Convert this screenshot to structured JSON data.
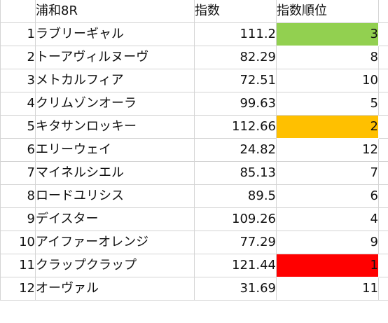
{
  "sheet": {
    "headers": {
      "race": "浦和8R",
      "index": "指数",
      "rank": "指数順位"
    },
    "rows": [
      {
        "no": "1",
        "name": "ラブリーギャル",
        "index": "111.2",
        "rank": "3",
        "highlight": "#92d050"
      },
      {
        "no": "2",
        "name": "トーアヴィルヌーヴ",
        "index": "82.29",
        "rank": "8",
        "highlight": ""
      },
      {
        "no": "3",
        "name": "メトカルフィア",
        "index": "72.51",
        "rank": "10",
        "highlight": ""
      },
      {
        "no": "4",
        "name": "クリムゾンオーラ",
        "index": "99.63",
        "rank": "5",
        "highlight": ""
      },
      {
        "no": "5",
        "name": "キタサンロッキー",
        "index": "112.66",
        "rank": "2",
        "highlight": "#ffc000"
      },
      {
        "no": "6",
        "name": "エリーウェイ",
        "index": "24.82",
        "rank": "12",
        "highlight": ""
      },
      {
        "no": "7",
        "name": "マイネルシエル",
        "index": "85.13",
        "rank": "7",
        "highlight": ""
      },
      {
        "no": "8",
        "name": "ロードユリシス",
        "index": "89.5",
        "rank": "6",
        "highlight": ""
      },
      {
        "no": "9",
        "name": "デイスター",
        "index": "109.26",
        "rank": "4",
        "highlight": ""
      },
      {
        "no": "10",
        "name": "アイファーオレンジ",
        "index": "77.29",
        "rank": "9",
        "highlight": ""
      },
      {
        "no": "11",
        "name": "クラップクラップ",
        "index": "121.44",
        "rank": "1",
        "highlight": "#ff0000"
      },
      {
        "no": "12",
        "name": "オーヴァル",
        "index": "31.69",
        "rank": "11",
        "highlight": ""
      }
    ]
  },
  "colors": {
    "gridline": "#d4d4d4",
    "rank1": "#ff0000",
    "rank2": "#ffc000",
    "rank3": "#92d050"
  }
}
